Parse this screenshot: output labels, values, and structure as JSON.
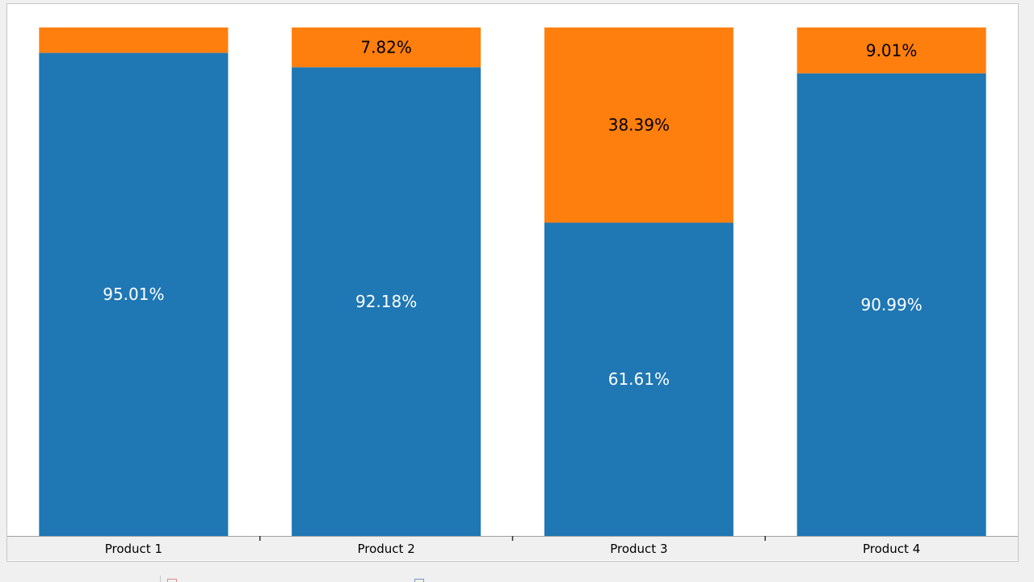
{
  "chart_data": {
    "type": "bar",
    "stacked": true,
    "percent_stacked": true,
    "categories": [
      "Product 1",
      "Product 2",
      "Product 3",
      "Product 4"
    ],
    "series": [
      {
        "values": [
          95.01,
          92.18,
          61.61,
          90.99
        ],
        "labels": [
          "95.01%",
          "92.18%",
          "61.61%",
          "90.99%"
        ],
        "color": "#1f77b4",
        "label_color": "#ffffff"
      },
      {
        "values": [
          4.99,
          7.82,
          38.39,
          9.01
        ],
        "labels": [
          "",
          "7.82%",
          "38.39%",
          "9.01%"
        ],
        "color": "#ff7f0e",
        "label_color": "#000000"
      }
    ],
    "ylim": [
      0,
      100
    ],
    "grid": false,
    "legend": false,
    "title": "",
    "xlabel": "",
    "ylabel": ""
  },
  "colors": {
    "axis_band": "#f0f0f0",
    "panel_border": "#c6c6c6",
    "tick": "#333333",
    "category_text": "#000000"
  }
}
